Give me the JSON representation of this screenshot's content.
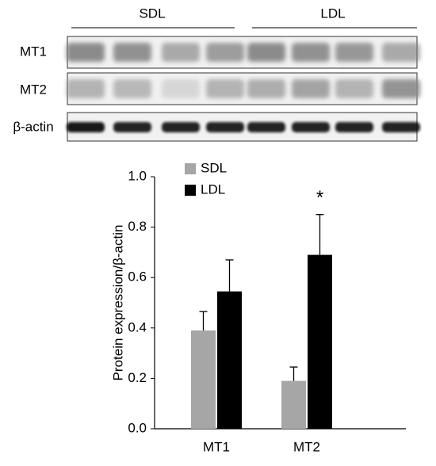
{
  "blot": {
    "groups": [
      "SDL",
      "LDL"
    ],
    "rows": [
      "MT1",
      "MT2",
      "β-actin"
    ]
  },
  "chart_data": {
    "type": "bar",
    "y_label": "Protein expression/β-actin",
    "categories": [
      "MT1",
      "MT2"
    ],
    "series": [
      {
        "name": "SDL",
        "color": "#a6a6a6",
        "values": [
          0.39,
          0.19
        ],
        "errors": [
          0.075,
          0.055
        ]
      },
      {
        "name": "LDL",
        "color": "#000000",
        "values": [
          0.545,
          0.69
        ],
        "errors": [
          0.125,
          0.16
        ]
      }
    ],
    "annotation": "*",
    "ylim": [
      0,
      1
    ],
    "yticks": [
      {
        "value": 0,
        "label": "0.0"
      },
      0.2,
      0.4,
      0.6,
      0.8,
      {
        "value": 1,
        "label": "1.0"
      }
    ],
    "legend": "upper left"
  }
}
